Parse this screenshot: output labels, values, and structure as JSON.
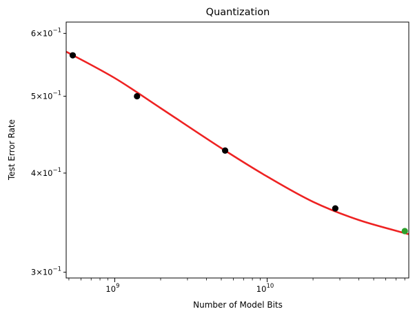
{
  "chart_data": {
    "type": "scatter",
    "title": "Quantization",
    "xlabel": "Number of Model Bits",
    "ylabel": "Test Error Rate",
    "xscale": "log",
    "yscale": "log",
    "xlim": [
      480000000,
      85000000000
    ],
    "ylim": [
      0.295,
      0.62
    ],
    "grid": false,
    "x_major_ticks": [
      {
        "value": 1000000000,
        "mantissa": "10",
        "exponent": "9"
      },
      {
        "value": 10000000000,
        "mantissa": "10",
        "exponent": "10"
      }
    ],
    "y_ticks": [
      {
        "value": 0.3,
        "mantissa": "3",
        "base": "10",
        "exponent": "−1"
      },
      {
        "value": 0.4,
        "mantissa": "4",
        "base": "10",
        "exponent": "−1"
      },
      {
        "value": 0.5,
        "mantissa": "5",
        "base": "10",
        "exponent": "−1"
      },
      {
        "value": 0.6,
        "mantissa": "6",
        "base": "10",
        "exponent": "−1"
      }
    ],
    "points": [
      {
        "x": 530000000,
        "y": 0.563,
        "color": "#000000"
      },
      {
        "x": 1400000000,
        "y": 0.5,
        "color": "#000000"
      },
      {
        "x": 5300000000,
        "y": 0.427,
        "color": "#000000"
      },
      {
        "x": 28000000000,
        "y": 0.361,
        "color": "#000000"
      },
      {
        "x": 80000000000,
        "y": 0.338,
        "color": "#2ca02c"
      }
    ],
    "fit_curve": {
      "color": "#ee2222",
      "x": [
        480000000,
        1000000000,
        2000000000,
        5000000000,
        10000000000,
        20000000000,
        40000000000,
        85000000000
      ],
      "y": [
        0.569,
        0.527,
        0.483,
        0.43,
        0.396,
        0.368,
        0.349,
        0.335
      ]
    }
  }
}
